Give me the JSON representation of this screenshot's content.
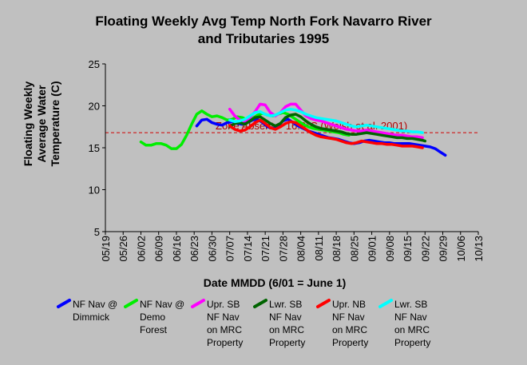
{
  "chart_data": {
    "type": "line",
    "title": "Floating Weekly Avg Temp North Fork Navarro River",
    "subtitle": "and Tributaries 1995",
    "xlabel": "Date MMDD (6/01 = June 1)",
    "ylabel_lines": [
      "Floating Weekly",
      "Average Water",
      "Temperature (C)"
    ],
    "ylim": [
      5,
      25
    ],
    "yticks": [
      5,
      10,
      15,
      20,
      25
    ],
    "x_tick_labels": [
      "05/19",
      "05/26",
      "06/02",
      "06/09",
      "06/16",
      "06/23",
      "06/30",
      "07/07",
      "07/14",
      "07/21",
      "07/28",
      "08/04",
      "08/11",
      "08/18",
      "08/25",
      "09/01",
      "09/08",
      "09/15",
      "09/22",
      "09/29",
      "10/06",
      "10/13"
    ],
    "x_unit": "days since 05/19",
    "grid": false,
    "threshold": {
      "value": 16.8,
      "label": "Zone Absent > 16.8°C (Welsh et al. 2001)",
      "color": "#d00000"
    },
    "series": [
      {
        "name": "NF Nav @ Dimmick",
        "color": "#0000ff",
        "x": [
          36,
          38,
          40,
          42,
          44,
          46,
          48,
          50,
          52,
          54,
          56,
          58,
          60,
          62,
          64,
          66,
          68,
          70,
          72,
          74,
          76,
          78,
          80,
          82,
          84,
          86,
          88,
          90,
          92,
          94,
          96,
          98,
          100,
          102,
          104,
          106,
          108,
          110,
          112,
          114,
          116,
          118,
          120,
          122,
          124,
          126,
          128,
          130,
          132,
          134
        ],
        "y": [
          17.6,
          18.3,
          18.4,
          18.0,
          17.8,
          17.7,
          18.0,
          18.1,
          17.9,
          17.8,
          18.0,
          18.3,
          18.4,
          18.0,
          17.5,
          17.3,
          17.6,
          18.2,
          18.4,
          18.0,
          17.6,
          17.3,
          17.0,
          16.8,
          16.6,
          16.4,
          16.2,
          16.1,
          16.0,
          15.8,
          15.6,
          15.5,
          15.6,
          15.8,
          15.9,
          15.8,
          15.7,
          15.6,
          15.6,
          15.5,
          15.5,
          15.5,
          15.5,
          15.4,
          15.3,
          15.2,
          15.1,
          14.9,
          14.5,
          14.1
        ]
      },
      {
        "name": "NF Nav @ Demo Forest",
        "color": "#00ee00",
        "x": [
          14,
          16,
          18,
          20,
          22,
          24,
          26,
          28,
          30,
          32,
          34,
          36,
          38,
          40,
          42,
          44,
          46,
          48,
          50,
          52,
          54,
          56,
          58,
          60,
          62,
          64,
          66,
          68,
          70,
          72,
          74,
          76,
          78,
          80,
          82,
          84,
          86,
          88,
          90,
          92,
          94,
          96
        ],
        "y": [
          15.7,
          15.3,
          15.3,
          15.5,
          15.5,
          15.3,
          14.9,
          14.9,
          15.4,
          16.5,
          17.8,
          19.0,
          19.4,
          19.0,
          18.7,
          18.8,
          18.6,
          18.3,
          18.4,
          18.7,
          18.6,
          18.3,
          18.5,
          18.9,
          19.1,
          18.9,
          18.8,
          19.0,
          19.2,
          19.0,
          18.6,
          18.2,
          17.8,
          17.5,
          17.3,
          17.2,
          17.1,
          17.0,
          16.9,
          16.8,
          16.6,
          16.5
        ]
      },
      {
        "name": "Upr. SB NF Nav on MRC Property",
        "color": "#ff00ff",
        "x": [
          49,
          51,
          53,
          55,
          57,
          59,
          61,
          63,
          65,
          67,
          69,
          71,
          73,
          75,
          77,
          79,
          81,
          83,
          85,
          87,
          89,
          91,
          93,
          95,
          97,
          99,
          101,
          103,
          105,
          107,
          109,
          111,
          113,
          115,
          117,
          119,
          121,
          123,
          125
        ],
        "y": [
          19.6,
          18.8,
          18.3,
          18.2,
          18.6,
          19.3,
          20.2,
          20.1,
          19.2,
          18.8,
          19.2,
          19.9,
          20.2,
          20.2,
          19.5,
          18.8,
          18.5,
          18.3,
          18.2,
          18.0,
          17.8,
          17.6,
          17.4,
          17.2,
          17.1,
          17.0,
          17.0,
          17.1,
          17.0,
          16.9,
          16.8,
          16.7,
          16.6,
          16.5,
          16.5,
          16.4,
          16.3,
          16.3,
          16.2
        ]
      },
      {
        "name": "Lwr. SB NF Nav on MRC Property",
        "color": "#006400",
        "x": [
          49,
          51,
          53,
          55,
          57,
          59,
          61,
          63,
          65,
          67,
          69,
          71,
          73,
          75,
          77,
          79,
          81,
          83,
          85,
          87,
          89,
          91,
          93,
          95,
          97,
          99,
          101,
          103,
          105,
          107,
          109,
          111,
          113,
          115,
          117,
          119,
          121,
          123,
          125,
          126
        ],
        "y": [
          17.5,
          17.9,
          18.0,
          17.8,
          18.2,
          18.6,
          18.7,
          18.3,
          17.9,
          17.6,
          17.9,
          18.6,
          18.9,
          19.0,
          18.7,
          18.2,
          17.8,
          17.5,
          17.3,
          17.2,
          17.1,
          17.0,
          16.9,
          16.7,
          16.6,
          16.6,
          16.7,
          16.8,
          16.7,
          16.6,
          16.5,
          16.4,
          16.3,
          16.2,
          16.2,
          16.1,
          16.1,
          16.0,
          15.9,
          15.8
        ]
      },
      {
        "name": "Upr. NB NF Nav on MRC Property",
        "color": "#ff0000",
        "x": [
          49,
          51,
          53,
          55,
          57,
          59,
          61,
          63,
          65,
          67,
          69,
          71,
          73,
          75,
          77,
          79,
          81,
          83,
          85,
          87,
          89,
          91,
          93,
          95,
          97,
          99,
          101,
          103,
          105,
          107,
          109,
          111,
          113,
          115,
          117,
          119,
          121,
          123,
          125
        ],
        "y": [
          17.6,
          17.2,
          17.0,
          17.1,
          17.5,
          18.0,
          18.3,
          17.9,
          17.4,
          17.2,
          17.5,
          17.9,
          18.1,
          18.0,
          17.6,
          17.2,
          16.8,
          16.5,
          16.3,
          16.2,
          16.1,
          16.0,
          15.8,
          15.6,
          15.5,
          15.6,
          15.8,
          15.7,
          15.6,
          15.5,
          15.5,
          15.4,
          15.4,
          15.3,
          15.2,
          15.2,
          15.2,
          15.1,
          15.0
        ]
      },
      {
        "name": "Lwr. SB NF Nav on MRC Property",
        "color": "#00ffff",
        "x": [
          49,
          51,
          53,
          55,
          57,
          59,
          61,
          63,
          65,
          67,
          69,
          71,
          73,
          75,
          77,
          79,
          81,
          83,
          85,
          87,
          89,
          91,
          93,
          95,
          97,
          99,
          101,
          103,
          105,
          107,
          109,
          111,
          113,
          115,
          117,
          119,
          121,
          123,
          125
        ],
        "y": [
          18.3,
          18.1,
          18.2,
          18.4,
          18.8,
          19.2,
          19.3,
          19.0,
          18.8,
          18.9,
          19.2,
          19.5,
          19.6,
          19.5,
          19.3,
          19.0,
          18.8,
          18.6,
          18.5,
          18.4,
          18.3,
          18.2,
          18.0,
          17.8,
          17.6,
          17.5,
          17.6,
          17.7,
          17.6,
          17.5,
          17.4,
          17.3,
          17.2,
          17.1,
          17.0,
          17.0,
          16.9,
          16.9,
          16.8
        ]
      }
    ],
    "legend": [
      {
        "color": "#0000ff",
        "lines": [
          "NF Nav @",
          "Dimmick"
        ]
      },
      {
        "color": "#00ee00",
        "lines": [
          "NF Nav @",
          "Demo",
          "Forest"
        ]
      },
      {
        "color": "#ff00ff",
        "lines": [
          "Upr. SB",
          "NF Nav",
          "on MRC",
          "Property"
        ]
      },
      {
        "color": "#006400",
        "lines": [
          "Lwr. SB",
          "NF Nav",
          "on MRC",
          "Property"
        ]
      },
      {
        "color": "#ff0000",
        "lines": [
          "Upr. NB",
          "NF Nav",
          "on MRC",
          "Property"
        ]
      },
      {
        "color": "#00ffff",
        "lines": [
          "Lwr. SB",
          "NF Nav",
          "on MRC",
          "Property"
        ]
      }
    ],
    "legend_position": "bottom"
  }
}
